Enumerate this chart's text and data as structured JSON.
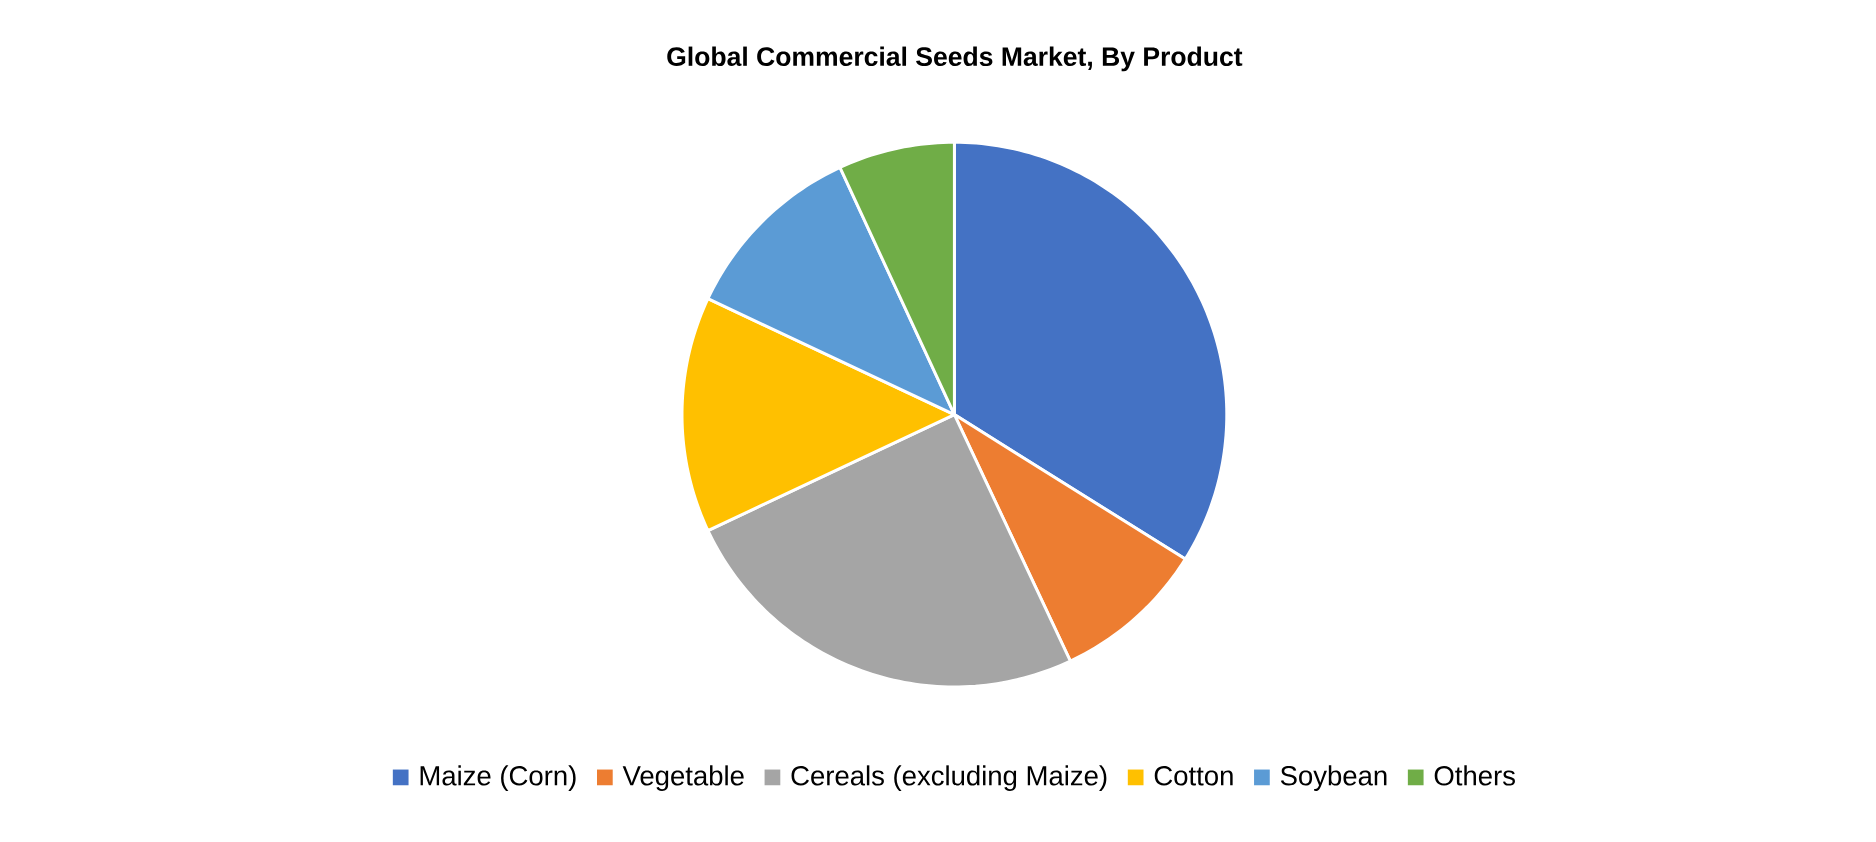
{
  "chart_data": {
    "type": "pie",
    "title": "Global Commercial Seeds Market, By Product",
    "categories": [
      "Maize (Corn)",
      "Vegetable",
      "Cereals (excluding Maize)",
      "Cotton",
      "Soybean",
      "Others"
    ],
    "values": [
      33.9,
      9.1,
      25.0,
      14.0,
      11.1,
      6.9
    ],
    "colors": [
      "#4472c4",
      "#ed7d31",
      "#a5a5a5",
      "#ffc000",
      "#5b9bd5",
      "#70ad47"
    ],
    "legend": "bottom"
  }
}
